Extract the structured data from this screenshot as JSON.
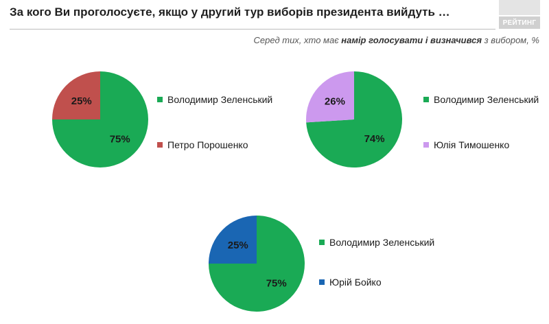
{
  "title": "За кого Ви проголосуєте, якщо у другий тур виборів президента вийдуть …",
  "logo": "РЕЙТИНГ",
  "subtitle": {
    "pre": "Серед тих, хто має ",
    "bold": "намір голосувати і визначився",
    "post": " з вибором, %"
  },
  "colors": {
    "zelensky": "#1aaa55",
    "poroshenko": "#c0504d",
    "tymoshenko": "#cc99ee",
    "boyko": "#1a66b3"
  },
  "chart_data": [
    {
      "type": "pie",
      "unit": "%",
      "slices": [
        {
          "label": "Володимир Зеленський",
          "value": 75,
          "value_label": "75%",
          "color": "#1aaa55"
        },
        {
          "label": "Петро Порошенко",
          "value": 25,
          "value_label": "25%",
          "color": "#c0504d"
        }
      ]
    },
    {
      "type": "pie",
      "unit": "%",
      "slices": [
        {
          "label": "Володимир Зеленський",
          "value": 74,
          "value_label": "74%",
          "color": "#1aaa55"
        },
        {
          "label": "Юлія Тимошенко",
          "value": 26,
          "value_label": "26%",
          "color": "#cc99ee"
        }
      ]
    },
    {
      "type": "pie",
      "unit": "%",
      "slices": [
        {
          "label": "Володимир Зеленський",
          "value": 75,
          "value_label": "75%",
          "color": "#1aaa55"
        },
        {
          "label": "Юрій Бойко",
          "value": 25,
          "value_label": "25%",
          "color": "#1a66b3"
        }
      ]
    }
  ]
}
